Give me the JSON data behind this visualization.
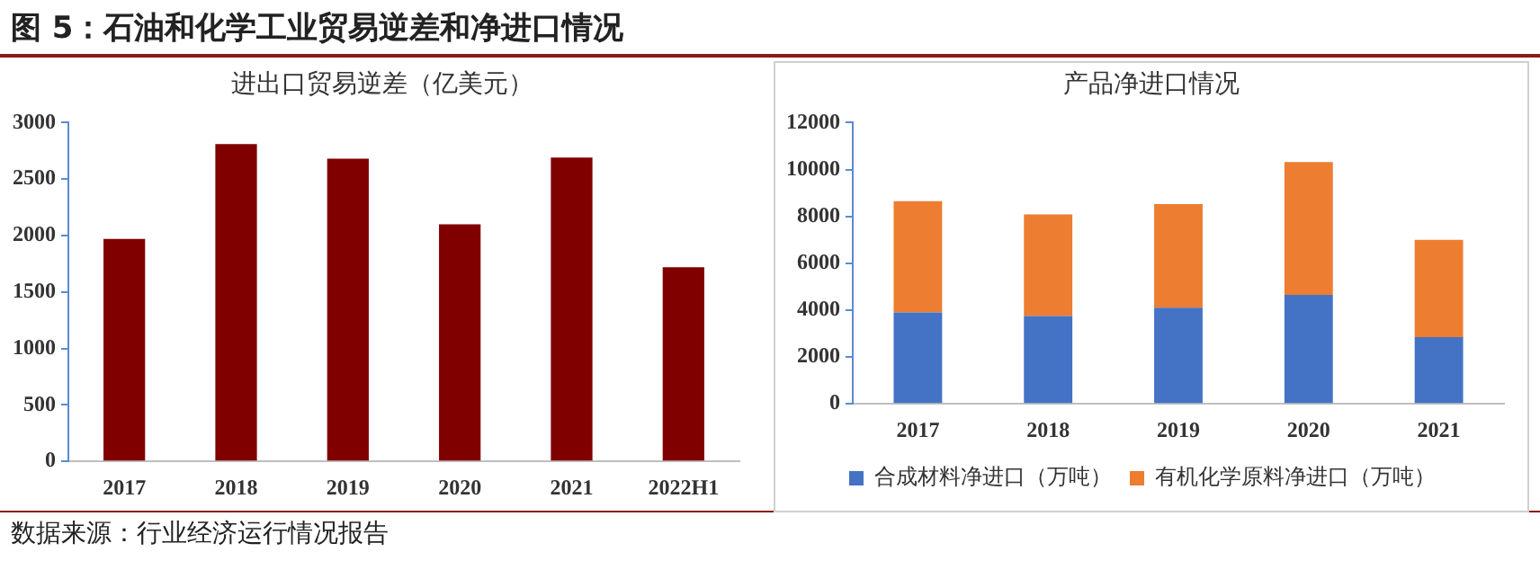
{
  "chart_data": [
    {
      "type": "bar",
      "title": "图 5：石油和化学工业贸易逆差和净进口情况",
      "subtitle": "进出口贸易逆差（亿美元）",
      "categories": [
        "2017",
        "2018",
        "2019",
        "2020",
        "2021",
        "2022H1"
      ],
      "series": [
        {
          "color": "#800000",
          "values": [
            1970,
            2810,
            2680,
            2100,
            2690,
            1720
          ]
        }
      ],
      "ylim": [
        0,
        3000
      ],
      "yticks": [
        0,
        500,
        1000,
        1500,
        2000,
        2500,
        3000
      ],
      "grid": false,
      "legend": false
    },
    {
      "type": "bar",
      "subtitle": "产品净进口情况",
      "stacked": true,
      "categories": [
        "2017",
        "2018",
        "2019",
        "2020",
        "2021"
      ],
      "series": [
        {
          "name": "合成材料净进口（万吨）",
          "color": "#4472c4",
          "values": [
            3900,
            3750,
            4100,
            4650,
            2850
          ]
        },
        {
          "name": "有机化学原料净进口（万吨）",
          "color": "#ed7d31",
          "values": [
            4750,
            4330,
            4420,
            5670,
            4150
          ]
        }
      ],
      "ylim": [
        0,
        12000
      ],
      "yticks": [
        0,
        2000,
        4000,
        6000,
        8000,
        10000,
        12000
      ],
      "grid": false,
      "legend": "bottom",
      "annotations": [
        "数据来源：行业经济运行情况报告"
      ]
    }
  ]
}
